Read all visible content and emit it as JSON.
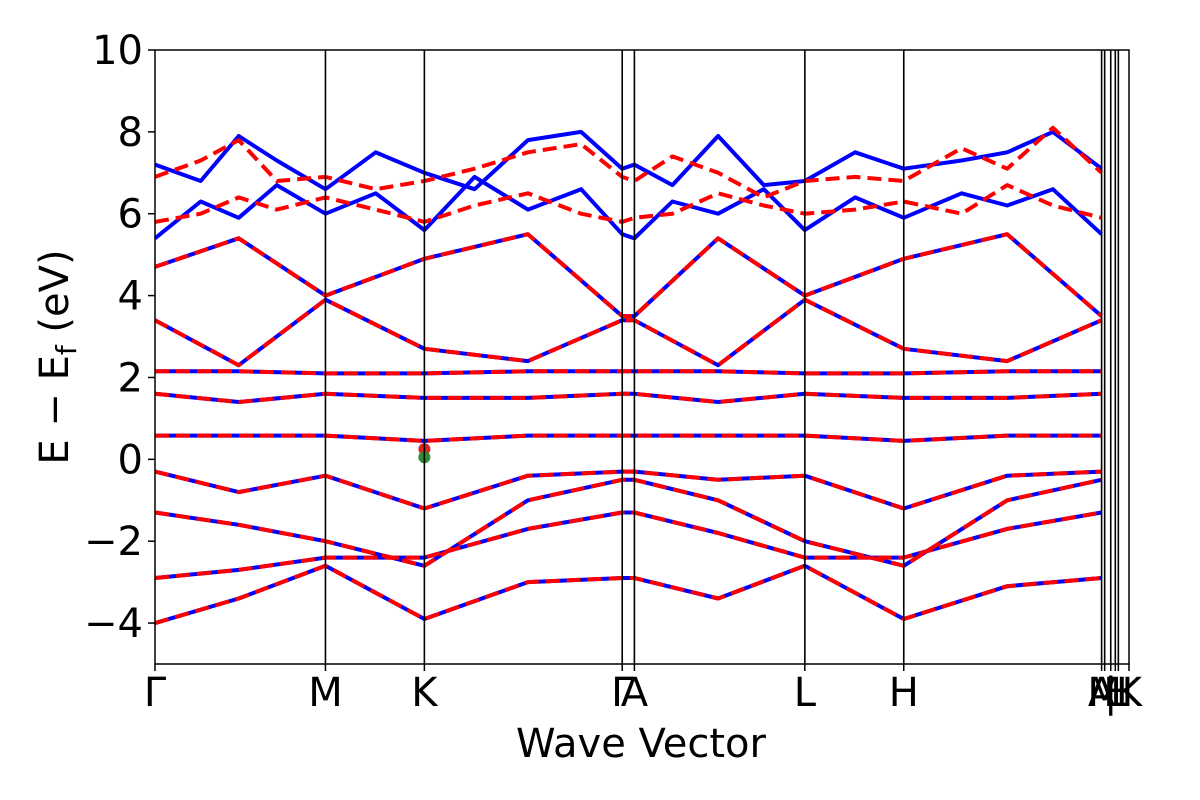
{
  "chart_data": {
    "type": "line",
    "title": "",
    "xlabel": "Wave Vector",
    "ylabel": "E − E",
    "ylabel_sub": "f",
    "ylabel_unit": " (eV)",
    "ylim": [
      -5,
      10
    ],
    "yticks": [
      10,
      8,
      6,
      4,
      2,
      0,
      -2,
      -4
    ],
    "ytick_labels": [
      "10",
      "8",
      "6",
      "4",
      "2",
      "0",
      "−2",
      "−4"
    ],
    "x_range": [
      0,
      6.4
    ],
    "kpoints": [
      {
        "label": "Γ",
        "x": 0.0
      },
      {
        "label": "M",
        "x": 1.12
      },
      {
        "label": "K",
        "x": 1.77
      },
      {
        "label": "Γ",
        "x": 3.07
      },
      {
        "label": "A",
        "x": 3.15
      },
      {
        "label": "L",
        "x": 4.27
      },
      {
        "label": "H",
        "x": 4.92
      },
      {
        "label": "A",
        "x": 6.22
      },
      {
        "label": "M",
        "x": 6.24
      },
      {
        "label": "|",
        "x": 6.28
      },
      {
        "label": "L",
        "x": 6.31
      },
      {
        "label": "H",
        "x": 6.33
      },
      {
        "label": "K",
        "x": 6.4
      }
    ],
    "series": [
      {
        "color": "#0000ff",
        "style": "solid",
        "bands": [
          {
            "x": [
              0,
              0.55,
              1.12,
              1.77,
              2.45,
              3.07,
              3.15,
              3.7,
              4.27,
              4.92,
              5.6,
              6.22
            ],
            "y": [
              -4.0,
              -3.4,
              -2.6,
              -3.9,
              -3.0,
              -2.9,
              -2.9,
              -3.4,
              -2.6,
              -3.9,
              -3.1,
              -2.9
            ]
          },
          {
            "x": [
              0,
              0.55,
              1.12,
              1.77,
              2.45,
              3.07,
              3.15,
              3.7,
              4.27,
              4.92,
              5.6,
              6.22
            ],
            "y": [
              -2.9,
              -2.7,
              -2.4,
              -2.4,
              -1.7,
              -1.3,
              -1.3,
              -1.8,
              -2.4,
              -2.4,
              -1.7,
              -1.3
            ]
          },
          {
            "x": [
              0,
              0.55,
              1.12,
              1.77,
              2.45,
              3.07,
              3.15,
              3.7,
              4.27,
              4.92,
              5.6,
              6.22
            ],
            "y": [
              -1.3,
              -1.6,
              -2.0,
              -2.6,
              -1.0,
              -0.5,
              -0.5,
              -1.0,
              -2.0,
              -2.6,
              -1.0,
              -0.5
            ]
          },
          {
            "x": [
              0,
              0.55,
              1.12,
              1.77,
              2.45,
              3.07,
              3.15,
              3.7,
              4.27,
              4.92,
              5.6,
              6.22
            ],
            "y": [
              -0.3,
              -0.8,
              -0.4,
              -1.2,
              -0.4,
              -0.3,
              -0.3,
              -0.5,
              -0.4,
              -1.2,
              -0.4,
              -0.3
            ]
          },
          {
            "x": [
              0,
              0.55,
              1.12,
              1.77,
              2.45,
              3.07,
              3.15,
              3.7,
              4.27,
              4.92,
              5.6,
              6.22
            ],
            "y": [
              0.58,
              0.58,
              0.58,
              0.45,
              0.58,
              0.58,
              0.58,
              0.58,
              0.58,
              0.45,
              0.58,
              0.58
            ]
          },
          {
            "x": [
              0,
              0.55,
              1.12,
              1.77,
              2.45,
              3.07,
              3.15,
              3.7,
              4.27,
              4.92,
              5.6,
              6.22
            ],
            "y": [
              1.6,
              1.4,
              1.6,
              1.5,
              1.5,
              1.6,
              1.6,
              1.4,
              1.6,
              1.5,
              1.5,
              1.6
            ]
          },
          {
            "x": [
              0,
              0.55,
              1.12,
              1.77,
              2.45,
              3.07,
              3.15,
              3.7,
              4.27,
              4.92,
              5.6,
              6.22
            ],
            "y": [
              2.15,
              2.15,
              2.1,
              2.1,
              2.15,
              2.15,
              2.15,
              2.15,
              2.1,
              2.1,
              2.15,
              2.15
            ]
          },
          {
            "x": [
              0,
              0.55,
              1.12,
              1.77,
              2.45,
              3.07,
              3.15,
              3.7,
              4.27,
              4.92,
              5.6,
              6.22
            ],
            "y": [
              3.4,
              2.3,
              3.9,
              2.7,
              2.4,
              3.4,
              3.4,
              2.3,
              3.9,
              2.7,
              2.4,
              3.4
            ]
          },
          {
            "x": [
              0,
              0.55,
              1.12,
              1.77,
              2.45,
              3.07,
              3.15,
              3.7,
              4.27,
              4.92,
              5.6,
              6.22
            ],
            "y": [
              4.7,
              5.4,
              4.0,
              4.9,
              5.5,
              3.5,
              3.5,
              5.4,
              4.0,
              4.9,
              5.5,
              3.5
            ]
          },
          {
            "x": [
              0,
              0.3,
              0.55,
              0.8,
              1.12,
              1.45,
              1.77,
              2.1,
              2.45,
              2.8,
              3.07,
              3.15,
              3.4,
              3.7,
              4.0,
              4.27,
              4.6,
              4.92,
              5.3,
              5.6,
              5.9,
              6.22
            ],
            "y": [
              7.2,
              6.8,
              7.9,
              7.3,
              6.6,
              7.5,
              7.0,
              6.6,
              7.8,
              8.0,
              7.1,
              7.2,
              6.7,
              7.9,
              6.7,
              6.8,
              7.5,
              7.1,
              7.3,
              7.5,
              8.0,
              7.1
            ]
          },
          {
            "x": [
              0,
              0.3,
              0.55,
              0.8,
              1.12,
              1.45,
              1.77,
              2.1,
              2.45,
              2.8,
              3.07,
              3.15,
              3.4,
              3.7,
              4.0,
              4.27,
              4.6,
              4.92,
              5.3,
              5.6,
              5.9,
              6.22
            ],
            "y": [
              5.4,
              6.3,
              5.9,
              6.7,
              6.0,
              6.5,
              5.6,
              6.9,
              6.1,
              6.6,
              5.5,
              5.4,
              6.3,
              6.0,
              6.6,
              5.6,
              6.4,
              5.9,
              6.5,
              6.2,
              6.6,
              5.5
            ]
          }
        ]
      },
      {
        "color": "#ff0000",
        "style": "dashed",
        "bands": [
          {
            "x": [
              0,
              0.55,
              1.12,
              1.77,
              2.45,
              3.07,
              3.15,
              3.7,
              4.27,
              4.92,
              5.6,
              6.22
            ],
            "y": [
              -4.0,
              -3.4,
              -2.6,
              -3.9,
              -3.0,
              -2.9,
              -2.9,
              -3.4,
              -2.6,
              -3.9,
              -3.1,
              -2.9
            ]
          },
          {
            "x": [
              0,
              0.55,
              1.12,
              1.77,
              2.45,
              3.07,
              3.15,
              3.7,
              4.27,
              4.92,
              5.6,
              6.22
            ],
            "y": [
              -2.9,
              -2.7,
              -2.4,
              -2.4,
              -1.7,
              -1.3,
              -1.3,
              -1.8,
              -2.4,
              -2.4,
              -1.7,
              -1.3
            ]
          },
          {
            "x": [
              0,
              0.55,
              1.12,
              1.77,
              2.45,
              3.07,
              3.15,
              3.7,
              4.27,
              4.92,
              5.6,
              6.22
            ],
            "y": [
              -1.3,
              -1.6,
              -2.0,
              -2.6,
              -1.0,
              -0.5,
              -0.5,
              -1.0,
              -2.0,
              -2.6,
              -1.0,
              -0.5
            ]
          },
          {
            "x": [
              0,
              0.55,
              1.12,
              1.77,
              2.45,
              3.07,
              3.15,
              3.7,
              4.27,
              4.92,
              5.6,
              6.22
            ],
            "y": [
              -0.3,
              -0.8,
              -0.4,
              -1.2,
              -0.4,
              -0.3,
              -0.3,
              -0.5,
              -0.4,
              -1.2,
              -0.4,
              -0.3
            ]
          },
          {
            "x": [
              0,
              0.55,
              1.12,
              1.77,
              2.45,
              3.07,
              3.15,
              3.7,
              4.27,
              4.92,
              5.6,
              6.22
            ],
            "y": [
              0.58,
              0.58,
              0.58,
              0.45,
              0.58,
              0.58,
              0.58,
              0.58,
              0.58,
              0.45,
              0.58,
              0.58
            ]
          },
          {
            "x": [
              0,
              0.55,
              1.12,
              1.77,
              2.45,
              3.07,
              3.15,
              3.7,
              4.27,
              4.92,
              5.6,
              6.22
            ],
            "y": [
              1.6,
              1.4,
              1.6,
              1.5,
              1.5,
              1.6,
              1.6,
              1.4,
              1.6,
              1.5,
              1.5,
              1.6
            ]
          },
          {
            "x": [
              0,
              0.55,
              1.12,
              1.77,
              2.45,
              3.07,
              3.15,
              3.7,
              4.27,
              4.92,
              5.6,
              6.22
            ],
            "y": [
              2.15,
              2.15,
              2.1,
              2.1,
              2.15,
              2.15,
              2.15,
              2.15,
              2.1,
              2.1,
              2.15,
              2.15
            ]
          },
          {
            "x": [
              0,
              0.55,
              1.12,
              1.77,
              2.45,
              3.07,
              3.15,
              3.7,
              4.27,
              4.92,
              5.6,
              6.22
            ],
            "y": [
              3.4,
              2.3,
              3.9,
              2.7,
              2.4,
              3.4,
              3.4,
              2.3,
              3.9,
              2.7,
              2.4,
              3.4
            ]
          },
          {
            "x": [
              0,
              0.55,
              1.12,
              1.77,
              2.45,
              3.07,
              3.15,
              3.7,
              4.27,
              4.92,
              5.6,
              6.22
            ],
            "y": [
              4.7,
              5.4,
              4.0,
              4.9,
              5.5,
              3.5,
              3.5,
              5.4,
              4.0,
              4.9,
              5.5,
              3.5
            ]
          },
          {
            "x": [
              0,
              0.3,
              0.55,
              0.8,
              1.12,
              1.45,
              1.77,
              2.1,
              2.45,
              2.8,
              3.07,
              3.15,
              3.4,
              3.7,
              4.0,
              4.27,
              4.6,
              4.92,
              5.3,
              5.6,
              5.9,
              6.22
            ],
            "y": [
              6.9,
              7.3,
              7.8,
              6.8,
              6.9,
              6.6,
              6.8,
              7.1,
              7.5,
              7.7,
              6.9,
              6.8,
              7.4,
              7.0,
              6.4,
              6.8,
              6.9,
              6.8,
              7.6,
              7.1,
              8.1,
              7.0
            ]
          },
          {
            "x": [
              0,
              0.3,
              0.55,
              0.8,
              1.12,
              1.45,
              1.77,
              2.1,
              2.45,
              2.8,
              3.07,
              3.15,
              3.4,
              3.7,
              4.0,
              4.27,
              4.6,
              4.92,
              5.3,
              5.6,
              5.9,
              6.22
            ],
            "y": [
              5.8,
              6.0,
              6.4,
              6.1,
              6.4,
              6.1,
              5.8,
              6.2,
              6.5,
              6.0,
              5.8,
              5.9,
              6.0,
              6.5,
              6.2,
              6.0,
              6.1,
              6.3,
              6.0,
              6.7,
              6.2,
              5.9
            ]
          }
        ]
      }
    ],
    "markers": [
      {
        "x": 1.77,
        "y": 0.25,
        "color": "#dd2222"
      },
      {
        "x": 1.77,
        "y": 0.05,
        "color": "#2e8b2e"
      }
    ],
    "grid": false,
    "legend": "none"
  }
}
